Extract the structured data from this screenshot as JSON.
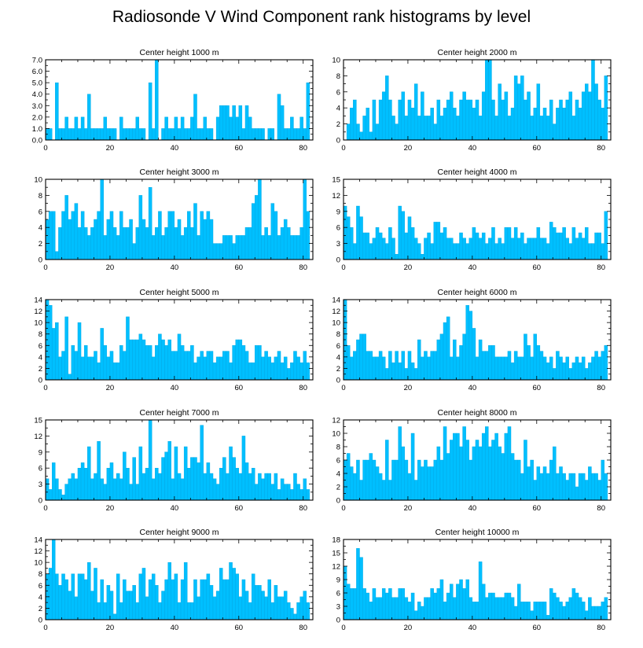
{
  "title": "Radiosonde V Wind Component rank histograms by level",
  "colors": {
    "bar": "#00BFFF",
    "bar_edge": "#00A6E0",
    "axis": "#000000",
    "frame": "#000000"
  },
  "chart_data": [
    {
      "type": "bar",
      "title": "Center height 1000 m",
      "xlim": [
        0,
        83
      ],
      "ylim": [
        0,
        7
      ],
      "xticks": [
        0,
        20,
        40,
        60,
        80
      ],
      "yticks": [
        0,
        1,
        2,
        3,
        4,
        5,
        6,
        7
      ],
      "ytick_labels": [
        "0.0",
        "1.0",
        "2.0",
        "3.0",
        "4.0",
        "5.0",
        "6.0",
        "7.0"
      ],
      "values": [
        1,
        1,
        0,
        5,
        1,
        1,
        2,
        1,
        1,
        2,
        1,
        2,
        1,
        4,
        1,
        1,
        1,
        1,
        2,
        1,
        1,
        1,
        0,
        2,
        1,
        1,
        1,
        1,
        2,
        1,
        1,
        0,
        5,
        1,
        7,
        0,
        1,
        2,
        1,
        1,
        2,
        1,
        2,
        1,
        1,
        2,
        4,
        1,
        1,
        2,
        1,
        1,
        0,
        2,
        3,
        3,
        3,
        2,
        3,
        2,
        3,
        1,
        3,
        2,
        1,
        1,
        1,
        1,
        0,
        1,
        1,
        0,
        4,
        3,
        1,
        1,
        2,
        1,
        1,
        2,
        1,
        5
      ]
    },
    {
      "type": "bar",
      "title": "Center height 2000 m",
      "xlim": [
        0,
        83
      ],
      "ylim": [
        0,
        10
      ],
      "xticks": [
        0,
        20,
        40,
        60,
        80
      ],
      "yticks": [
        0,
        2,
        4,
        6,
        8,
        10
      ],
      "ytick_labels": [
        "0",
        "2",
        "4",
        "6",
        "8",
        "10"
      ],
      "values": [
        0,
        2,
        4,
        5,
        2,
        1,
        3,
        4,
        1,
        5,
        2,
        5,
        6,
        8,
        5,
        3,
        2,
        5,
        6,
        3,
        5,
        4,
        7,
        3,
        6,
        3,
        3,
        4,
        2,
        5,
        3,
        4,
        5,
        6,
        4,
        3,
        5,
        6,
        5,
        5,
        4,
        5,
        3,
        6,
        10,
        10,
        5,
        3,
        7,
        5,
        6,
        3,
        4,
        8,
        7,
        8,
        5,
        6,
        3,
        4,
        7,
        3,
        4,
        3,
        5,
        2,
        4,
        5,
        4,
        5,
        6,
        3,
        5,
        4,
        6,
        7,
        6,
        10,
        7,
        5,
        4,
        8
      ]
    },
    {
      "type": "bar",
      "title": "Center height 3000 m",
      "xlim": [
        0,
        83
      ],
      "ylim": [
        0,
        10
      ],
      "xticks": [
        0,
        20,
        40,
        60,
        80
      ],
      "yticks": [
        0,
        2,
        4,
        6,
        8,
        10
      ],
      "ytick_labels": [
        "0",
        "2",
        "4",
        "6",
        "8",
        "10"
      ],
      "values": [
        5,
        6,
        6,
        1,
        4,
        6,
        8,
        5,
        6,
        7,
        4,
        6,
        4,
        3,
        4,
        5,
        6,
        10,
        3,
        5,
        6,
        4,
        3,
        6,
        4,
        4,
        5,
        2,
        4,
        8,
        5,
        4,
        9,
        3,
        4,
        6,
        3,
        4,
        6,
        6,
        4,
        5,
        3,
        4,
        6,
        4,
        7,
        3,
        6,
        5,
        6,
        5,
        2,
        2,
        2,
        3,
        3,
        3,
        2,
        3,
        3,
        3,
        4,
        4,
        7,
        8,
        10,
        3,
        4,
        3,
        7,
        6,
        3,
        4,
        5,
        4,
        3,
        3,
        3,
        4,
        10,
        6
      ]
    },
    {
      "type": "bar",
      "title": "Center height 4000 m",
      "xlim": [
        0,
        83
      ],
      "ylim": [
        0,
        15
      ],
      "xticks": [
        0,
        20,
        40,
        60,
        80
      ],
      "yticks": [
        0,
        3,
        6,
        9,
        12,
        15
      ],
      "ytick_labels": [
        "0",
        "3",
        "6",
        "9",
        "12",
        "15"
      ],
      "values": [
        10,
        8,
        6,
        3,
        10,
        8,
        5,
        5,
        3,
        4,
        6,
        5,
        4,
        3,
        6,
        4,
        1,
        10,
        9,
        5,
        8,
        6,
        4,
        3,
        1,
        4,
        5,
        3,
        7,
        7,
        5,
        6,
        4,
        4,
        3,
        3,
        5,
        4,
        3,
        4,
        6,
        5,
        4,
        5,
        3,
        4,
        6,
        3,
        4,
        3,
        6,
        6,
        4,
        6,
        4,
        5,
        3,
        4,
        4,
        4,
        6,
        4,
        4,
        3,
        7,
        6,
        5,
        5,
        6,
        4,
        3,
        6,
        4,
        5,
        4,
        6,
        3,
        3,
        5,
        5,
        3,
        9
      ]
    },
    {
      "type": "bar",
      "title": "Center height 5000 m",
      "xlim": [
        0,
        83
      ],
      "ylim": [
        0,
        14
      ],
      "xticks": [
        0,
        20,
        40,
        60,
        80
      ],
      "yticks": [
        0,
        2,
        4,
        6,
        8,
        10,
        12,
        14
      ],
      "ytick_labels": [
        "0",
        "2",
        "4",
        "6",
        "8",
        "10",
        "12",
        "14"
      ],
      "values": [
        14,
        13,
        9,
        10,
        4,
        5,
        11,
        1,
        6,
        5,
        10,
        4,
        6,
        4,
        4,
        5,
        3,
        9,
        6,
        4,
        5,
        3,
        3,
        6,
        5,
        11,
        7,
        7,
        7,
        8,
        7,
        6,
        6,
        4,
        6,
        8,
        7,
        6,
        7,
        5,
        5,
        8,
        6,
        5,
        5,
        6,
        3,
        4,
        5,
        4,
        5,
        5,
        3,
        4,
        4,
        5,
        5,
        3,
        6,
        7,
        7,
        6,
        5,
        3,
        3,
        6,
        6,
        4,
        5,
        4,
        3,
        4,
        5,
        3,
        4,
        2,
        3,
        5,
        4,
        3,
        5,
        3
      ]
    },
    {
      "type": "bar",
      "title": "Center height 6000 m",
      "xlim": [
        0,
        83
      ],
      "ylim": [
        0,
        14
      ],
      "xticks": [
        0,
        20,
        40,
        60,
        80
      ],
      "yticks": [
        0,
        2,
        4,
        6,
        8,
        10,
        12,
        14
      ],
      "ytick_labels": [
        "0",
        "2",
        "4",
        "6",
        "8",
        "10",
        "12",
        "14"
      ],
      "values": [
        14,
        6,
        4,
        5,
        7,
        8,
        8,
        5,
        5,
        4,
        4,
        5,
        4,
        2,
        5,
        3,
        5,
        3,
        5,
        2,
        5,
        3,
        2,
        7,
        4,
        5,
        4,
        5,
        5,
        7,
        8,
        10,
        11,
        4,
        7,
        4,
        6,
        8,
        13,
        12,
        9,
        4,
        7,
        5,
        5,
        6,
        6,
        4,
        4,
        4,
        4,
        5,
        3,
        5,
        4,
        4,
        8,
        6,
        4,
        8,
        6,
        5,
        4,
        3,
        4,
        2,
        5,
        4,
        3,
        4,
        2,
        3,
        4,
        3,
        4,
        2,
        3,
        4,
        5,
        4,
        5,
        6
      ]
    },
    {
      "type": "bar",
      "title": "Center height 7000 m",
      "xlim": [
        0,
        83
      ],
      "ylim": [
        0,
        15
      ],
      "xticks": [
        0,
        20,
        40,
        60,
        80
      ],
      "yticks": [
        0,
        3,
        6,
        9,
        12,
        15
      ],
      "ytick_labels": [
        "0",
        "3",
        "6",
        "9",
        "12",
        "15"
      ],
      "values": [
        4,
        2,
        7,
        4,
        2,
        1,
        3,
        4,
        5,
        4,
        6,
        7,
        6,
        10,
        4,
        5,
        11,
        4,
        3,
        6,
        7,
        4,
        5,
        4,
        9,
        6,
        3,
        8,
        3,
        10,
        5,
        6,
        15,
        4,
        6,
        5,
        8,
        9,
        11,
        4,
        10,
        5,
        4,
        10,
        6,
        8,
        8,
        7,
        14,
        5,
        7,
        5,
        4,
        3,
        6,
        8,
        5,
        10,
        8,
        6,
        5,
        12,
        7,
        5,
        6,
        3,
        5,
        4,
        5,
        5,
        3,
        5,
        2,
        4,
        3,
        3,
        2,
        5,
        3,
        2,
        4,
        2
      ]
    },
    {
      "type": "bar",
      "title": "Center height 8000 m",
      "xlim": [
        0,
        83
      ],
      "ylim": [
        0,
        12
      ],
      "xticks": [
        0,
        20,
        40,
        60,
        80
      ],
      "yticks": [
        0,
        2,
        4,
        6,
        8,
        10,
        12
      ],
      "ytick_labels": [
        "0",
        "2",
        "4",
        "6",
        "8",
        "10",
        "12"
      ],
      "values": [
        6,
        7,
        5,
        4,
        6,
        3,
        6,
        6,
        7,
        6,
        5,
        4,
        3,
        9,
        3,
        6,
        6,
        11,
        8,
        6,
        4,
        10,
        3,
        6,
        5,
        6,
        5,
        5,
        6,
        8,
        6,
        11,
        7,
        9,
        10,
        10,
        8,
        11,
        9,
        6,
        8,
        9,
        8,
        10,
        11,
        8,
        9,
        10,
        8,
        7,
        10,
        11,
        7,
        6,
        6,
        4,
        9,
        5,
        6,
        3,
        5,
        4,
        5,
        4,
        6,
        8,
        4,
        5,
        4,
        3,
        4,
        4,
        2,
        4,
        4,
        3,
        5,
        4,
        4,
        3,
        6,
        4
      ]
    },
    {
      "type": "bar",
      "title": "Center height 9000 m",
      "xlim": [
        0,
        83
      ],
      "ylim": [
        0,
        14
      ],
      "xticks": [
        0,
        20,
        40,
        60,
        80
      ],
      "yticks": [
        0,
        2,
        4,
        6,
        8,
        10,
        12,
        14
      ],
      "ytick_labels": [
        "0",
        "2",
        "4",
        "6",
        "8",
        "10",
        "12",
        "14"
      ],
      "values": [
        8,
        9,
        14,
        8,
        6,
        8,
        7,
        5,
        8,
        4,
        8,
        8,
        7,
        10,
        5,
        9,
        3,
        7,
        3,
        6,
        5,
        1,
        8,
        3,
        7,
        5,
        5,
        6,
        3,
        8,
        9,
        4,
        7,
        8,
        6,
        3,
        5,
        7,
        10,
        7,
        8,
        3,
        7,
        10,
        3,
        3,
        7,
        4,
        7,
        7,
        8,
        6,
        4,
        5,
        9,
        7,
        7,
        10,
        9,
        8,
        4,
        7,
        5,
        3,
        8,
        6,
        6,
        5,
        4,
        7,
        3,
        6,
        4,
        4,
        5,
        3,
        2,
        1,
        3,
        4,
        5,
        3
      ]
    },
    {
      "type": "bar",
      "title": "Center height 10000 m",
      "xlim": [
        0,
        83
      ],
      "ylim": [
        0,
        18
      ],
      "xticks": [
        0,
        20,
        40,
        60,
        80
      ],
      "yticks": [
        0,
        3,
        6,
        9,
        12,
        15,
        18
      ],
      "ytick_labels": [
        "0",
        "3",
        "6",
        "9",
        "12",
        "15",
        "18"
      ],
      "values": [
        12,
        8,
        7,
        7,
        16,
        14,
        7,
        6,
        4,
        7,
        5,
        5,
        7,
        6,
        7,
        5,
        5,
        7,
        7,
        5,
        4,
        6,
        2,
        4,
        3,
        5,
        5,
        7,
        6,
        7,
        9,
        4,
        6,
        8,
        5,
        8,
        9,
        7,
        9,
        5,
        4,
        4,
        13,
        8,
        5,
        6,
        6,
        5,
        5,
        5,
        6,
        6,
        5,
        3,
        8,
        4,
        4,
        4,
        2,
        4,
        4,
        4,
        4,
        1,
        7,
        6,
        5,
        4,
        3,
        4,
        5,
        7,
        6,
        5,
        4,
        2,
        5,
        3,
        3,
        3,
        4,
        5
      ]
    }
  ]
}
